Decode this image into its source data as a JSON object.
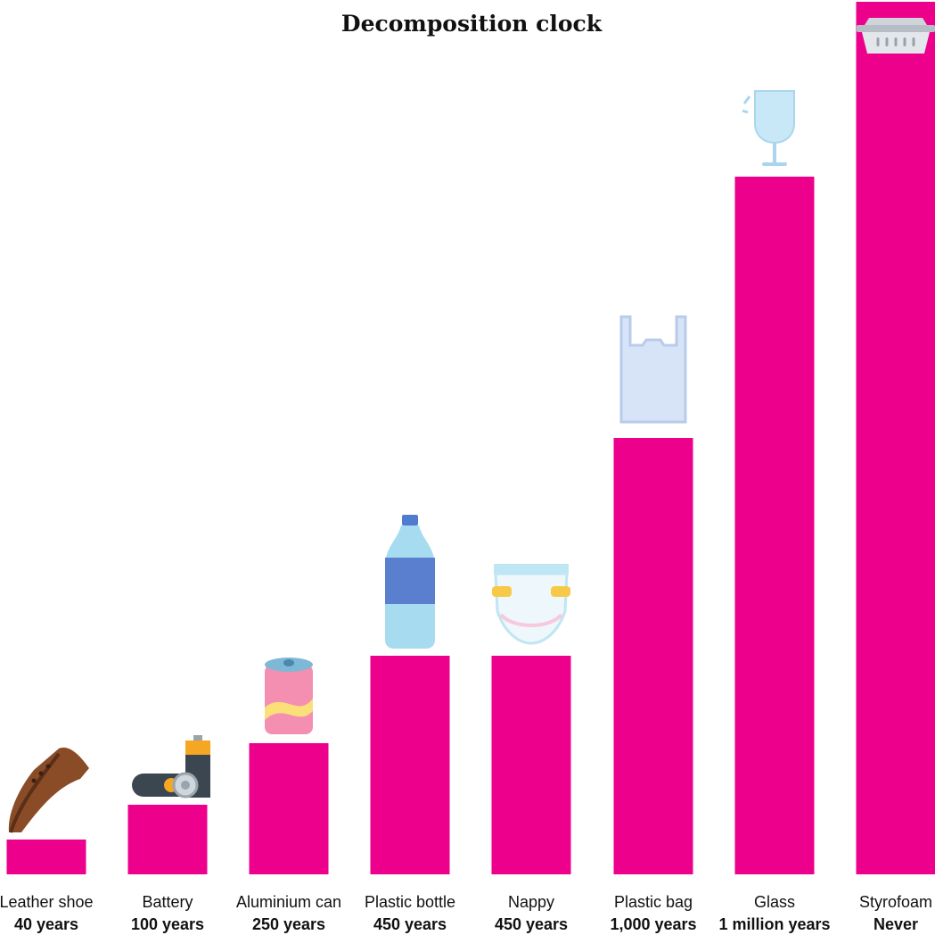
{
  "chart_data": {
    "type": "bar",
    "title": "Decomposition clock",
    "xlabel": "",
    "ylabel": "",
    "categories": [
      "Leather shoe",
      "Battery",
      "Aluminium can",
      "Plastic bottle",
      "Nappy",
      "Plastic bag",
      "Glass",
      "Styrofoam"
    ],
    "value_labels": [
      "40 years",
      "100 years",
      "250 years",
      "450 years",
      "450 years",
      "1,000 years",
      "1 million years",
      "Never"
    ],
    "relative_heights": [
      0.04,
      0.08,
      0.15,
      0.25,
      0.25,
      0.5,
      0.8,
      1.0
    ],
    "icons": [
      "leather-shoe-icon",
      "battery-icon",
      "aluminium-can-icon",
      "plastic-bottle-icon",
      "nappy-icon",
      "plastic-bag-icon",
      "glass-icon",
      "styrofoam-container-icon"
    ],
    "grid": false,
    "legend": "none",
    "colors": {
      "bar": "#ec008c"
    }
  }
}
